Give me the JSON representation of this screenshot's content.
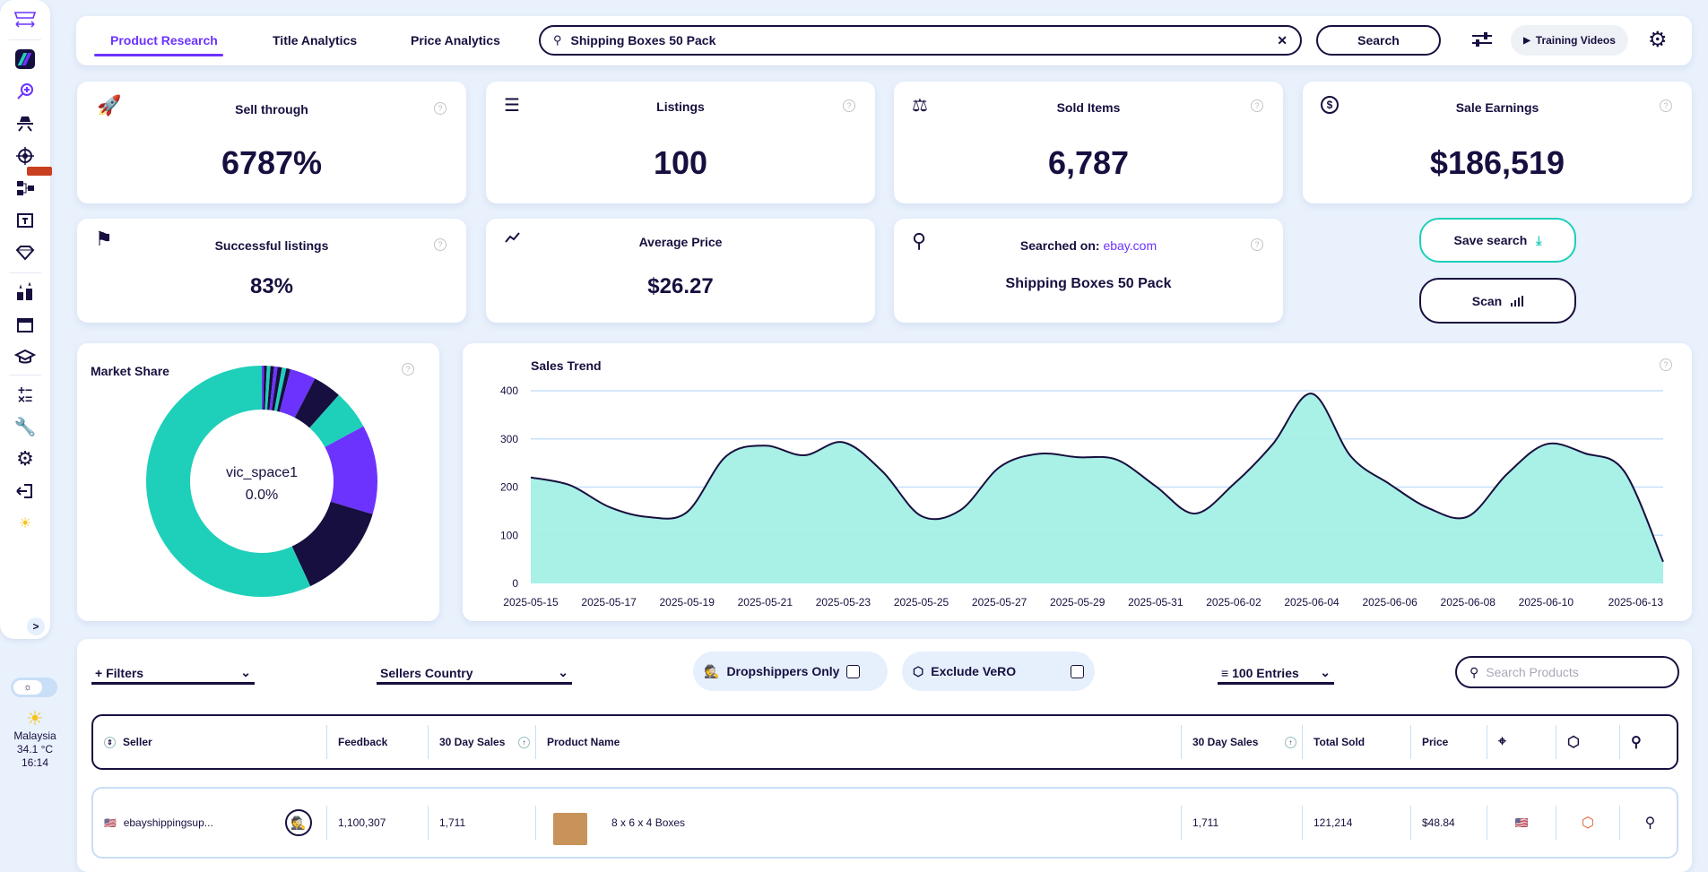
{
  "sidebar": {
    "items": [
      "marketplace-switch",
      "dashboard",
      "product-research",
      "competitor-research",
      "target",
      "category-tree",
      "title-builder",
      "premium",
      "leaderboard",
      "archive",
      "academy",
      "calculator",
      "tools",
      "settings",
      "logout",
      "theme"
    ],
    "expand_label": ">"
  },
  "weather": {
    "country": "Malaysia",
    "temp": "34.1 °C",
    "time": "16:14"
  },
  "tabs": [
    {
      "label": "Product Research"
    },
    {
      "label": "Title Analytics"
    },
    {
      "label": "Price Analytics"
    }
  ],
  "search": {
    "value": "Shipping Boxes 50 Pack",
    "button": "Search",
    "clear": "✕"
  },
  "training_label": "Training Videos",
  "stats": {
    "sell_through": {
      "title": "Sell through",
      "value": "6787%"
    },
    "listings": {
      "title": "Listings",
      "value": "100"
    },
    "sold_items": {
      "title": "Sold Items",
      "value": "6,787"
    },
    "sale_earnings": {
      "title": "Sale Earnings",
      "value": "$186,519"
    },
    "successful": {
      "title": "Successful listings",
      "value": "83%"
    },
    "avg_price": {
      "title": "Average Price",
      "value": "$26.27"
    },
    "searched_on": {
      "title": "Searched on:",
      "site": "ebay.com",
      "value": "Shipping Boxes 50 Pack"
    }
  },
  "actions": {
    "save": "Save search",
    "scan": "Scan"
  },
  "colors": {
    "teal": "#1ecfb9",
    "purple": "#6c33ff",
    "dark": "#170f3f",
    "area": "#a4efe6",
    "grid": "#c6e0fa"
  },
  "chart_data": [
    {
      "type": "pie",
      "title": "Market Share",
      "center_label": "vic_space1",
      "center_value": "0.0%",
      "values": [
        0.3,
        0.4,
        0.5,
        0.5,
        0.5,
        0.6,
        0.6,
        0.6,
        3.6,
        4.0,
        5.5,
        12.5,
        13.5,
        56.9
      ],
      "colors": [
        "#6c33ff",
        "#170f3f",
        "#1ecfb9",
        "#170f3f",
        "#6c33ff",
        "#170f3f",
        "#1ecfb9",
        "#170f3f",
        "#6c33ff",
        "#170f3f",
        "#1ecfb9",
        "#6c33ff",
        "#170f3f",
        "#1ecfb9"
      ]
    },
    {
      "type": "area",
      "title": "Sales Trend",
      "ylim": [
        0,
        400
      ],
      "yticks": [
        "0",
        "100",
        "200",
        "300",
        "400"
      ],
      "x": [
        "2025-05-15",
        "2025-05-16",
        "2025-05-17",
        "2025-05-18",
        "2025-05-19",
        "2025-05-20",
        "2025-05-21",
        "2025-05-22",
        "2025-05-23",
        "2025-05-24",
        "2025-05-25",
        "2025-05-26",
        "2025-05-27",
        "2025-05-28",
        "2025-05-29",
        "2025-05-30",
        "2025-05-31",
        "2025-06-01",
        "2025-06-02",
        "2025-06-03",
        "2025-06-04",
        "2025-06-05",
        "2025-06-06",
        "2025-06-07",
        "2025-06-08",
        "2025-06-09",
        "2025-06-10",
        "2025-06-11",
        "2025-06-12",
        "2025-06-13"
      ],
      "values": [
        220,
        204,
        159,
        138,
        148,
        264,
        286,
        266,
        293,
        233,
        140,
        152,
        241,
        269,
        262,
        257,
        202,
        145,
        206,
        289,
        394,
        264,
        206,
        156,
        139,
        227,
        289,
        270,
        233,
        45
      ],
      "xticks": [
        "2025-05-15",
        "2025-05-17",
        "2025-05-19",
        "2025-05-21",
        "2025-05-23",
        "2025-05-25",
        "2025-05-27",
        "2025-05-29",
        "2025-05-31",
        "2025-06-02",
        "2025-06-04",
        "2025-06-06",
        "2025-06-08",
        "2025-06-10",
        "2025-06-13"
      ]
    }
  ],
  "filters": {
    "filters": "Filters",
    "country": "Sellers Country",
    "dropshippers": "Dropshippers Only",
    "vero": "Exclude VeRO",
    "entries": "100 Entries",
    "search_placeholder": "Search Products"
  },
  "table": {
    "headers": [
      "Seller",
      "Feedback",
      "30 Day Sales",
      "Product Name",
      "30 Day Sales",
      "Total Sold",
      "Price"
    ],
    "rows": [
      {
        "seller": "ebayshippingsup...",
        "feedback": "1,100,307",
        "sales30": "1,711",
        "product": "8 x 6 x 4 Boxes",
        "sales30b": "1,711",
        "total": "121,214",
        "price": "$48.84"
      }
    ]
  }
}
